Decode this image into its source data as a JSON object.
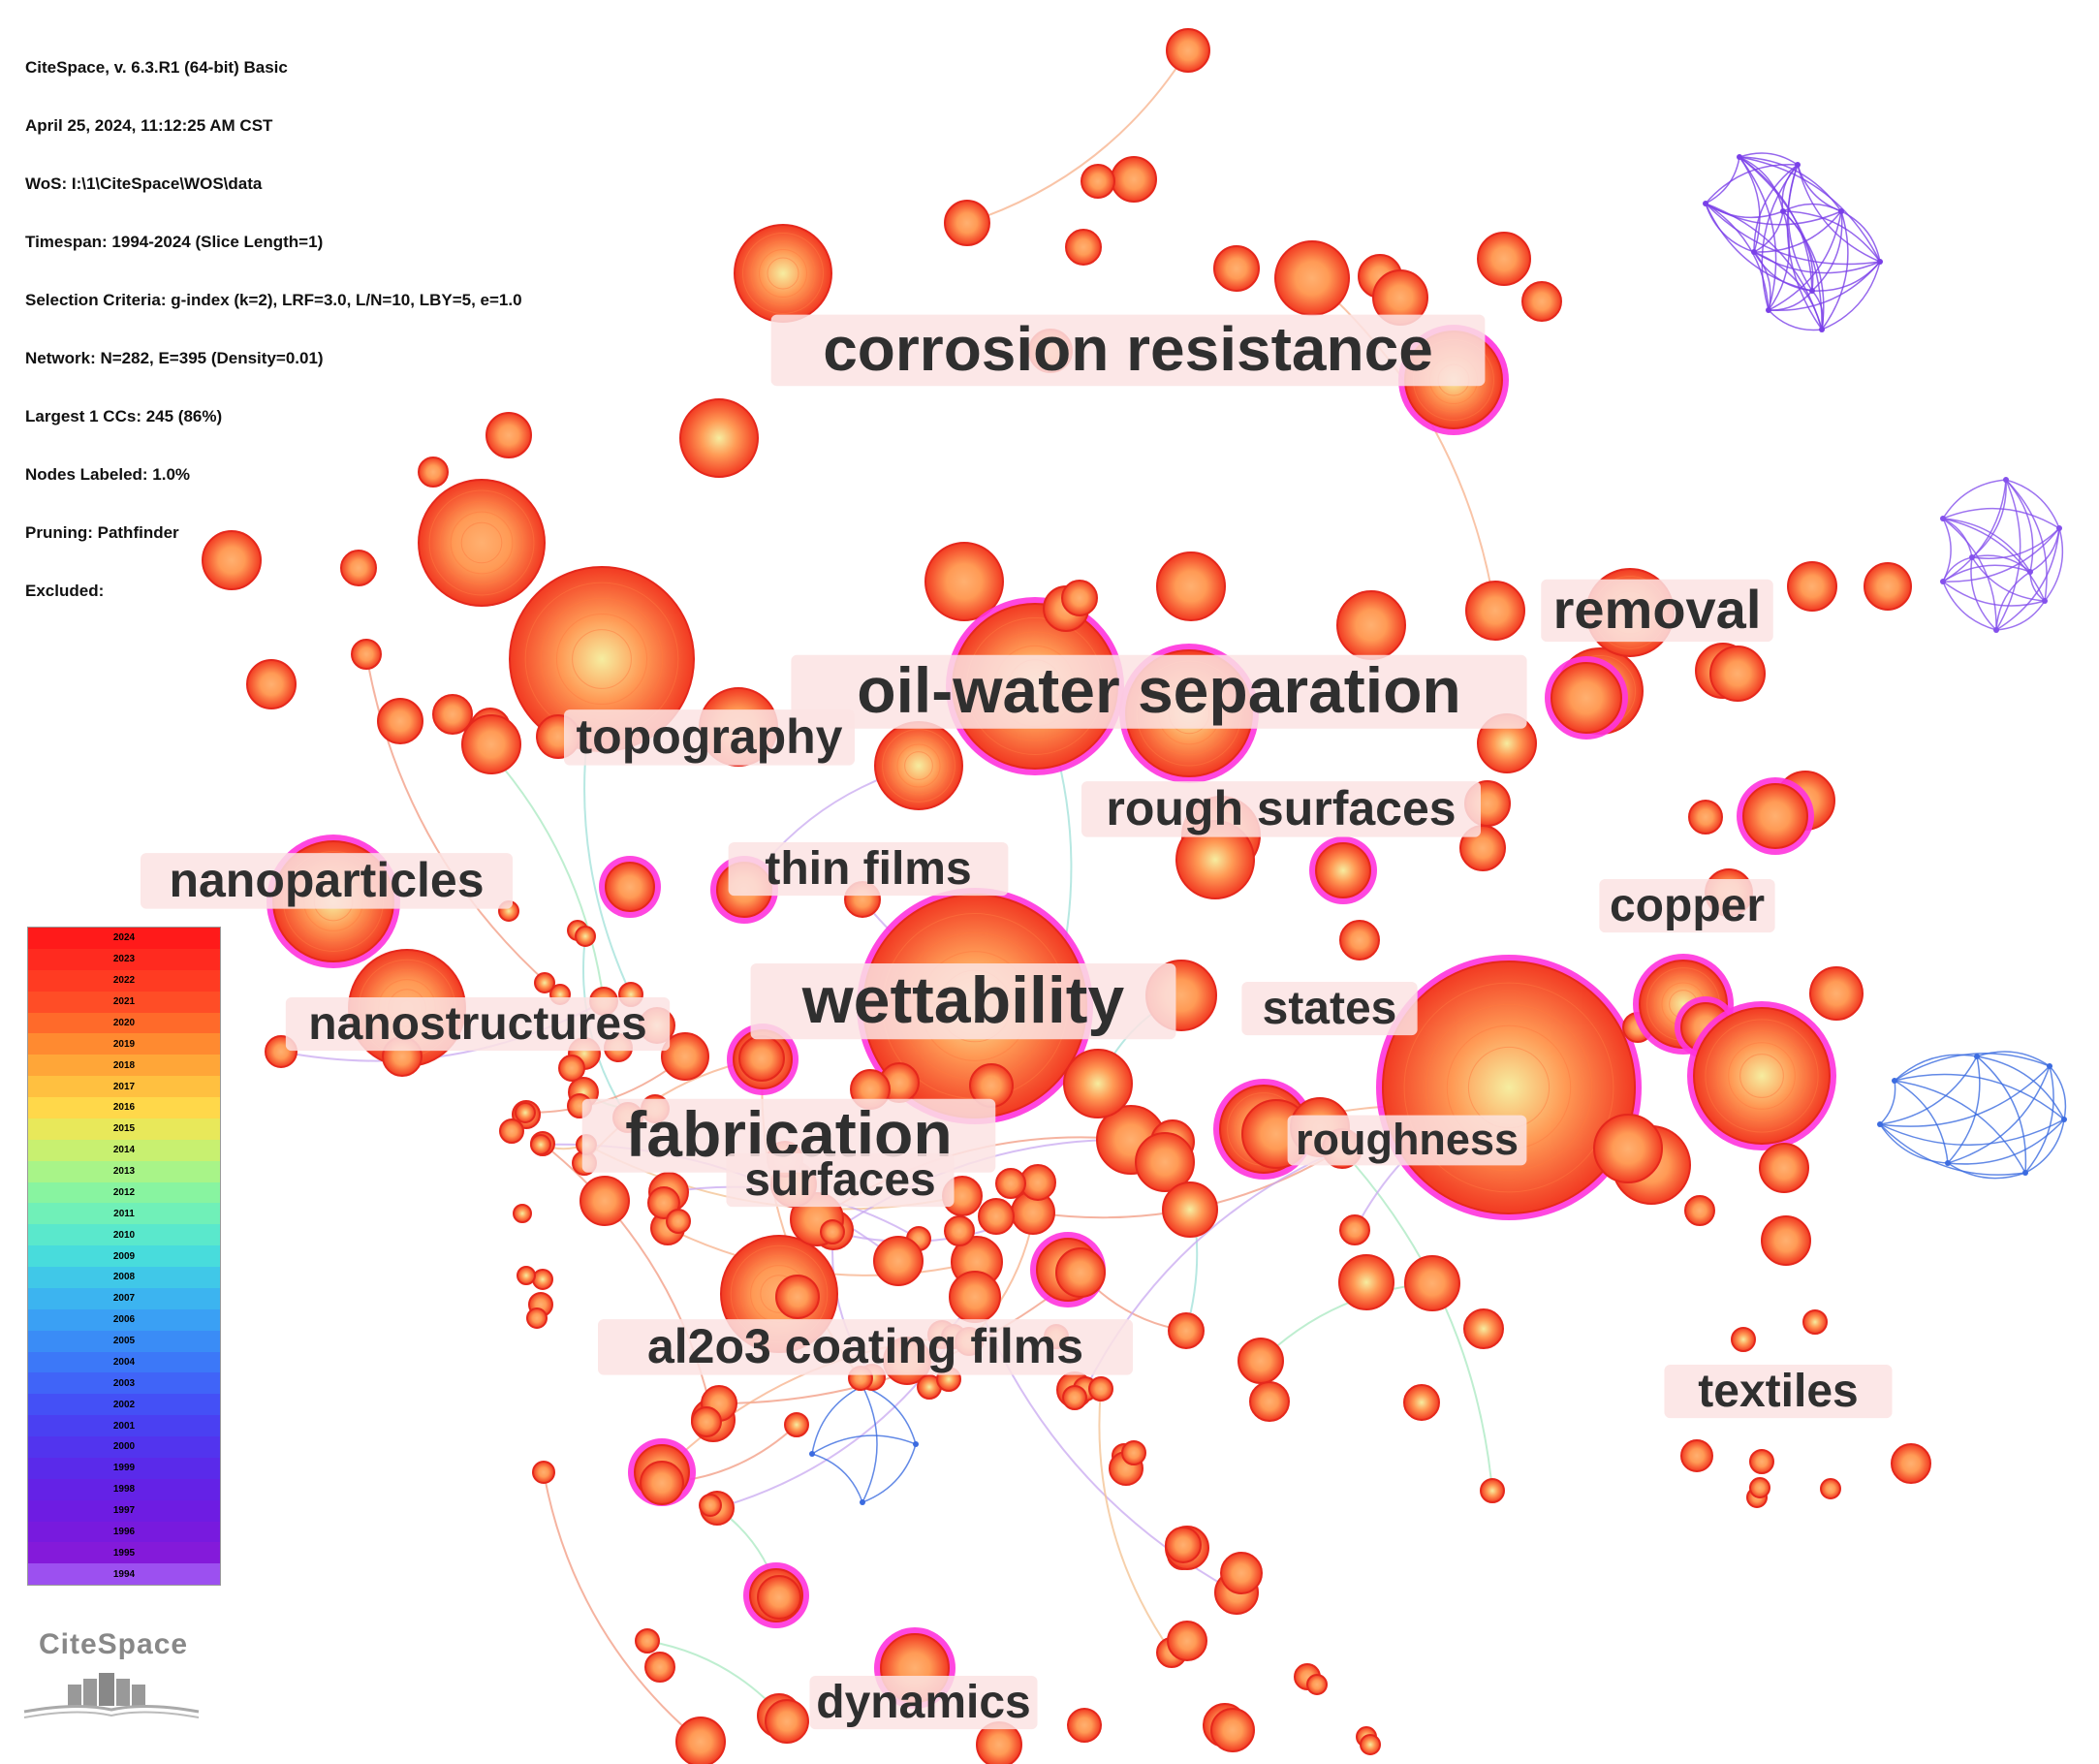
{
  "info": {
    "lines": [
      "CiteSpace, v. 6.3.R1 (64-bit) Basic",
      "April 25, 2024, 11:12:25 AM CST",
      "WoS: I:\\1\\CiteSpace\\WOS\\data",
      "Timespan: 1994-2024 (Slice Length=1)",
      "Selection Criteria: g-index (k=2), LRF=3.0, L/N=10, LBY=5, e=1.0",
      "Network: N=282, E=395 (Density=0.01)",
      "Largest 1 CCs: 245 (86%)",
      "Nodes Labeled: 1.0%",
      "Pruning: Pathfinder",
      "Excluded:"
    ]
  },
  "legend": {
    "years": [
      "2024",
      "2023",
      "2022",
      "2021",
      "2020",
      "2019",
      "2018",
      "2017",
      "2016",
      "2015",
      "2014",
      "2013",
      "2012",
      "2011",
      "2010",
      "2009",
      "2008",
      "2007",
      "2006",
      "2005",
      "2004",
      "2003",
      "2002",
      "2001",
      "2000",
      "1999",
      "1998",
      "1997",
      "1996",
      "1995",
      "1994"
    ],
    "colors": [
      "#ff1a1a",
      "#ff2a1f",
      "#ff3b22",
      "#ff4d26",
      "#ff6a2a",
      "#ff8a30",
      "#ffa638",
      "#ffc040",
      "#ffd84a",
      "#e8e85a",
      "#c8f070",
      "#a8f488",
      "#88f4a0",
      "#70f0b8",
      "#5ae8cc",
      "#48dcdc",
      "#40c8e8",
      "#3cb4f0",
      "#3aa0f4",
      "#3a8cf6",
      "#3c78f8",
      "#4064f8",
      "#4450f6",
      "#4a40f2",
      "#5234ee",
      "#5a2aea",
      "#6422e6",
      "#6e1ce2",
      "#781ade",
      "#841ada",
      "#9c50f0"
    ]
  },
  "logo": {
    "text": "CiteSpace"
  },
  "keywords": [
    {
      "label": "corrosion resistance"
    },
    {
      "label": "removal"
    },
    {
      "label": "oil-water separation"
    },
    {
      "label": "topography"
    },
    {
      "label": "rough surfaces"
    },
    {
      "label": "thin films"
    },
    {
      "label": "nanoparticles"
    },
    {
      "label": "copper"
    },
    {
      "label": "wettability"
    },
    {
      "label": "states"
    },
    {
      "label": "nanostructures"
    },
    {
      "label": "fabrication"
    },
    {
      "label": "roughness"
    },
    {
      "label": "surfaces"
    },
    {
      "label": "al2o3 coating films"
    },
    {
      "label": "textiles"
    },
    {
      "label": "dynamics"
    }
  ]
}
